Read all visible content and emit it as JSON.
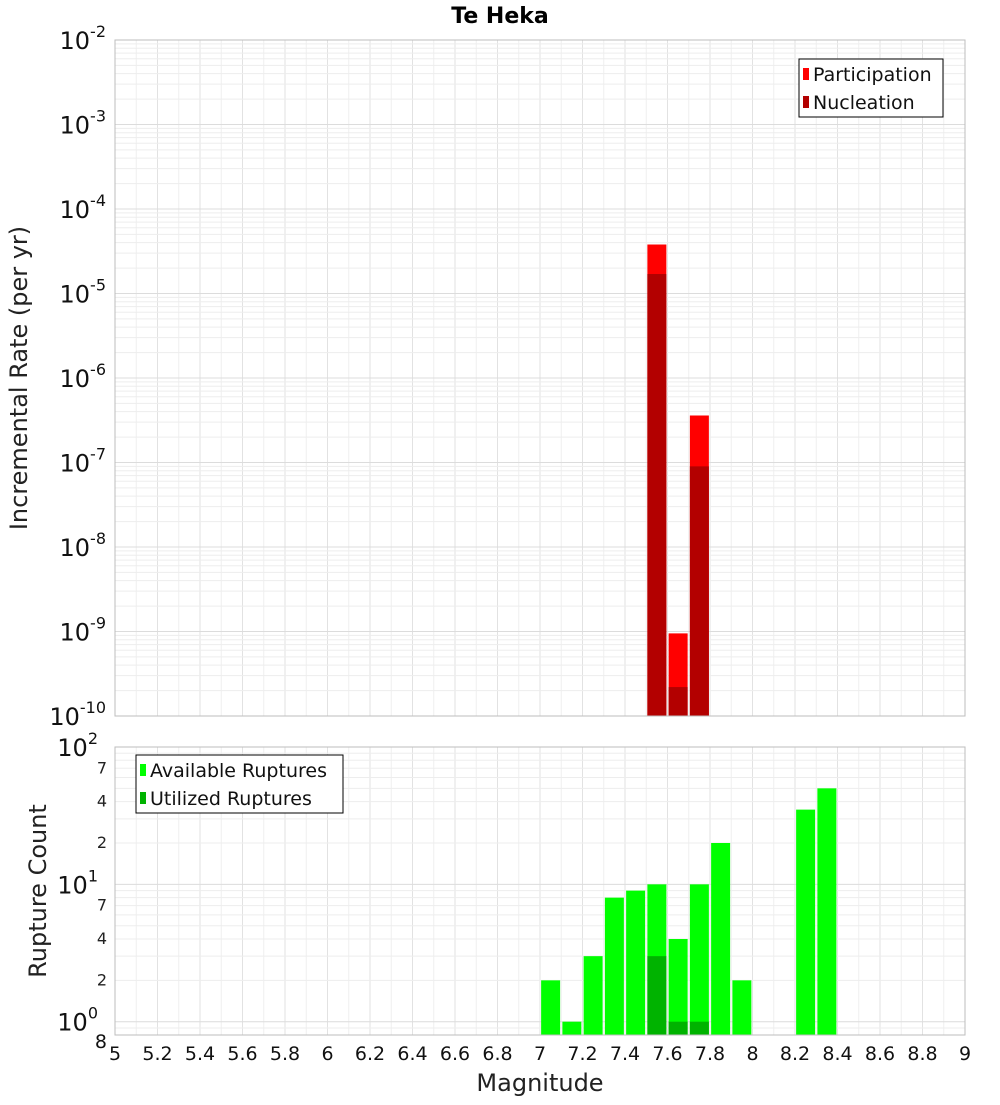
{
  "chart_data": [
    {
      "type": "bar",
      "title": "Te Heka",
      "xlabel": "",
      "ylabel": "Incremental Rate (per yr)",
      "yscale": "log",
      "xlim": [
        5,
        9
      ],
      "ylim": [
        1e-10,
        0.01
      ],
      "grid": true,
      "legend_position": "top-right",
      "y_tick_labels": [
        {
          "base": "10",
          "exp": "-2"
        },
        {
          "base": "10",
          "exp": "-3"
        },
        {
          "base": "10",
          "exp": "-4"
        },
        {
          "base": "10",
          "exp": "-5"
        },
        {
          "base": "10",
          "exp": "-6"
        },
        {
          "base": "10",
          "exp": "-7"
        },
        {
          "base": "10",
          "exp": "-8"
        },
        {
          "base": "10",
          "exp": "-9"
        },
        {
          "base": "10",
          "exp": "-10"
        }
      ],
      "series": [
        {
          "name": "Participation",
          "color": "#ff0000",
          "points": [
            {
              "x": 7.55,
              "y": 3.8e-05
            },
            {
              "x": 7.65,
              "y": 9.5e-10
            },
            {
              "x": 7.75,
              "y": 3.6e-07
            }
          ]
        },
        {
          "name": "Nucleation",
          "color": "#b30000",
          "points": [
            {
              "x": 7.55,
              "y": 1.7e-05
            },
            {
              "x": 7.65,
              "y": 2.2e-10
            },
            {
              "x": 7.75,
              "y": 9e-08
            }
          ]
        }
      ]
    },
    {
      "type": "bar",
      "xlabel": "Magnitude",
      "ylabel": "Rupture Count",
      "yscale": "log",
      "xlim": [
        5,
        9
      ],
      "ylim": [
        0.8,
        100
      ],
      "grid": true,
      "legend_position": "top-left",
      "x_tick_labels": [
        "5",
        "5.2",
        "5.4",
        "5.6",
        "5.8",
        "6",
        "6.2",
        "6.4",
        "6.6",
        "6.8",
        "7",
        "7.2",
        "7.4",
        "7.6",
        "7.8",
        "8",
        "8.2",
        "8.4",
        "8.6",
        "8.8",
        "9"
      ],
      "y_major_labels": [
        {
          "base": "10",
          "exp": "2"
        },
        {
          "base": "10",
          "exp": "1"
        },
        {
          "base": "10",
          "exp": "0"
        }
      ],
      "y_minor_labels": [
        {
          "value": 70,
          "label": "7"
        },
        {
          "value": 40,
          "label": "4"
        },
        {
          "value": 20,
          "label": "2"
        },
        {
          "value": 7,
          "label": "7"
        },
        {
          "value": 4,
          "label": "4"
        },
        {
          "value": 2,
          "label": "2"
        },
        {
          "value": 0.8,
          "label": "8"
        }
      ],
      "series": [
        {
          "name": "Available Ruptures",
          "color": "#00ff00",
          "points": [
            {
              "x": 7.05,
              "y": 2
            },
            {
              "x": 7.15,
              "y": 1
            },
            {
              "x": 7.25,
              "y": 3
            },
            {
              "x": 7.35,
              "y": 8
            },
            {
              "x": 7.45,
              "y": 9
            },
            {
              "x": 7.55,
              "y": 10
            },
            {
              "x": 7.65,
              "y": 4
            },
            {
              "x": 7.75,
              "y": 10
            },
            {
              "x": 7.85,
              "y": 20
            },
            {
              "x": 7.95,
              "y": 2
            },
            {
              "x": 8.25,
              "y": 35
            },
            {
              "x": 8.35,
              "y": 50
            }
          ]
        },
        {
          "name": "Utilized Ruptures",
          "color": "#00b300",
          "points": [
            {
              "x": 7.55,
              "y": 3
            },
            {
              "x": 7.65,
              "y": 1
            },
            {
              "x": 7.75,
              "y": 1
            }
          ]
        }
      ]
    }
  ]
}
